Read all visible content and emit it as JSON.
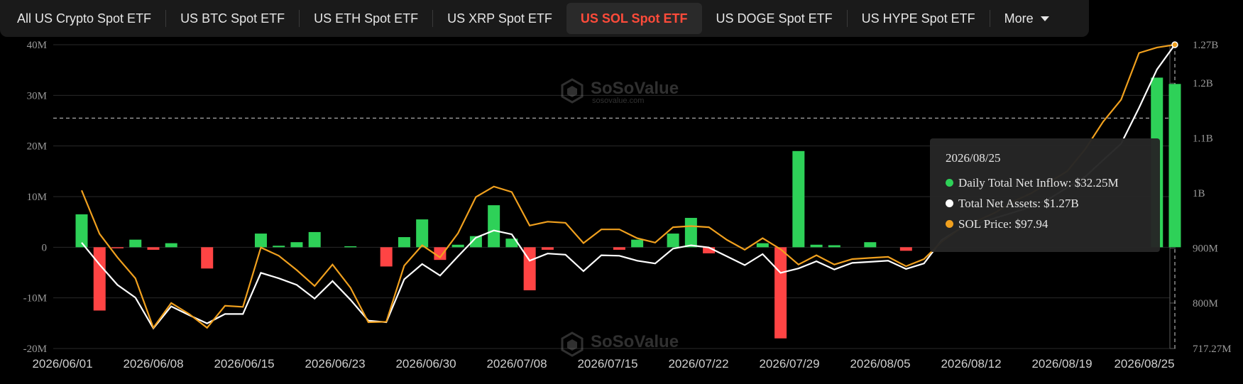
{
  "tabs": [
    {
      "label": "All US Crypto Spot ETF",
      "active": false
    },
    {
      "label": "US BTC Spot ETF",
      "active": false
    },
    {
      "label": "US ETH Spot ETF",
      "active": false
    },
    {
      "label": "US XRP Spot ETF",
      "active": false
    },
    {
      "label": "US SOL Spot ETF",
      "active": true
    },
    {
      "label": "US DOGE Spot ETF",
      "active": false
    },
    {
      "label": "US HYPE Spot ETF",
      "active": false
    }
  ],
  "more_label": "More",
  "watermark": {
    "brand": "SoSoValue",
    "domain": "sosovalue.com"
  },
  "tooltip": {
    "date": "2026/08/25",
    "rows": [
      {
        "label": "Daily Total Net Inflow: $32.25M",
        "color": "#2ed158"
      },
      {
        "label": "Total Net Assets: $1.27B",
        "color": "#ffffff"
      },
      {
        "label": "SOL Price: $97.94",
        "color": "#f0a01e"
      }
    ]
  },
  "colors": {
    "positive": "#2ed158",
    "negative": "#ff4444",
    "assets": "#ffffff",
    "price": "#f0a01e",
    "grid": "#2a2a2a"
  },
  "chart_data": {
    "type": "bar",
    "xtick_labels": [
      "2026/06/01",
      "2026/06/08",
      "2026/06/15",
      "2026/06/23",
      "2026/06/30",
      "2026/07/08",
      "2026/07/15",
      "2026/07/22",
      "2026/07/29",
      "2026/08/05",
      "2026/08/12",
      "2026/08/19",
      "2026/08/25"
    ],
    "left_axis": {
      "ticks": [
        "40M",
        "30M",
        "20M",
        "10M",
        "0",
        "-10M",
        "-20M"
      ],
      "min": -20,
      "max": 40,
      "unit": "M"
    },
    "right_axis": {
      "ticks": [
        "1.27B",
        "1.2B",
        "1.1B",
        "1B",
        "900M",
        "800M",
        "717.27M"
      ],
      "values": [
        1270,
        1200,
        1100,
        1000,
        900,
        800,
        717.27
      ],
      "min": 717.27,
      "max": 1270,
      "unit": "M"
    },
    "dashed_reference_left": 25.5,
    "series": [
      {
        "name": "Daily Total Net Inflow",
        "axis": "left",
        "unit": "M",
        "values": [
          6.5,
          -12.5,
          -0.2,
          1.5,
          -0.5,
          0.8,
          null,
          -4.2,
          null,
          null,
          2.7,
          0.3,
          1.0,
          3.0,
          null,
          0.2,
          null,
          -3.8,
          2.0,
          5.5,
          -2.5,
          0.5,
          2.2,
          8.3,
          1.7,
          -8.5,
          -0.5,
          null,
          null,
          null,
          -0.5,
          1.5,
          null,
          2.7,
          5.8,
          -1.2,
          null,
          null,
          0.8,
          -18.0,
          19.0,
          0.5,
          0.4,
          null,
          1.0,
          null,
          -0.7,
          null,
          null,
          null,
          null,
          null,
          null,
          null,
          null,
          null,
          null,
          null,
          null,
          null,
          33.5,
          32.25
        ]
      },
      {
        "name": "Total Net Assets",
        "axis": "right",
        "unit": "M",
        "values": [
          910,
          870,
          833,
          810,
          754,
          794,
          778,
          763,
          780,
          780,
          855,
          845,
          833,
          808,
          840,
          806,
          768,
          765,
          843,
          871,
          850,
          885,
          919,
          932,
          925,
          877,
          890,
          888,
          858,
          887,
          886,
          877,
          872,
          899,
          905,
          901,
          885,
          869,
          889,
          855,
          863,
          876,
          861,
          873,
          875,
          877,
          862,
          872,
          915,
          935,
          945,
          955,
          965,
          975,
          990,
          1010,
          1030,
          1060,
          1090,
          1155,
          1225,
          1270
        ]
      },
      {
        "name": "SOL Price",
        "axis": "right",
        "unit": "USD",
        "values_right_axis_m": [
          1005,
          926,
          883,
          845,
          755,
          800,
          780,
          755,
          795,
          793,
          901,
          886,
          860,
          831,
          870,
          828,
          765,
          766,
          868,
          905,
          883,
          927,
          993,
          1012,
          1002,
          941,
          948,
          946,
          909,
          934,
          934,
          918,
          910,
          938,
          940,
          938,
          915,
          897,
          918,
          898,
          870,
          887,
          870,
          880,
          882,
          884,
          867,
          880,
          912,
          935,
          950,
          965,
          985,
          1000,
          1020,
          1040,
          1080,
          1130,
          1170,
          1255,
          1265,
          1270
        ]
      }
    ]
  }
}
